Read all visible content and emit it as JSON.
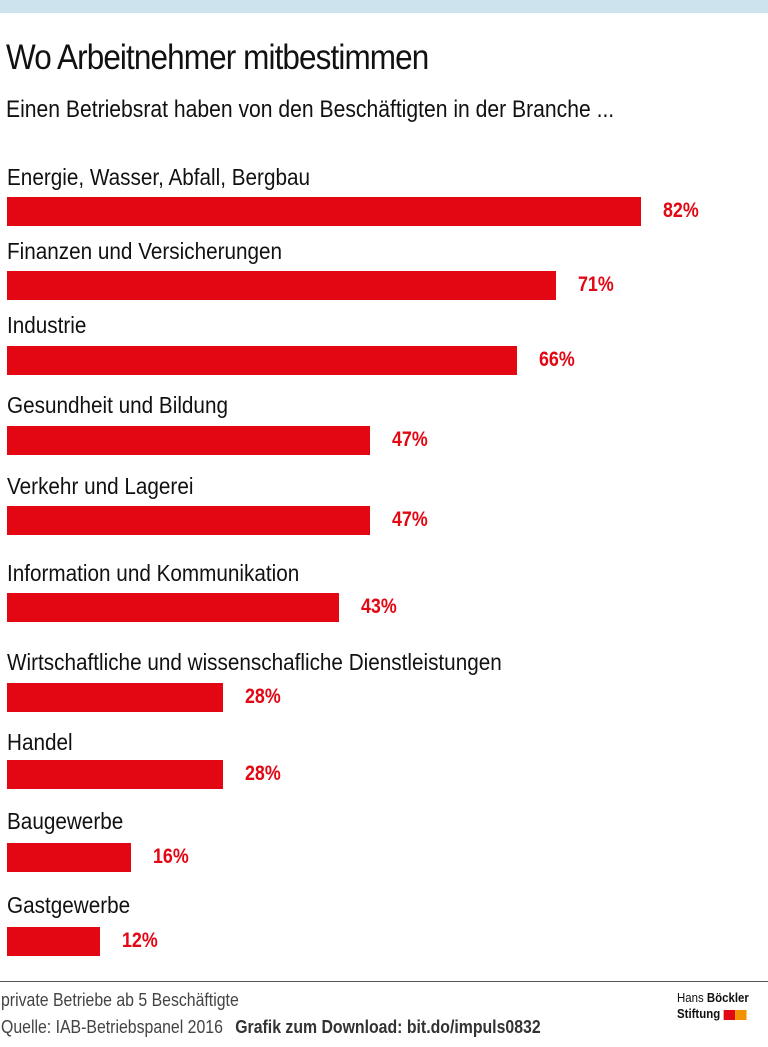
{
  "colors": {
    "bar": "#e30613",
    "value_label": "#e30613",
    "top_band": "#cde3ee",
    "logo_red": "#e30613",
    "logo_orange": "#f39200"
  },
  "chart_data": {
    "type": "bar",
    "orientation": "horizontal",
    "title": "Wo Arbeitnehmer mitbestimmen",
    "subtitle": "Einen Betriebsrat haben von den Beschäftigten in der Branche ...",
    "categories": [
      "Energie, Wasser, Abfall, Bergbau",
      "Finanzen und Versicherungen",
      "Industrie",
      "Gesundheit und Bildung",
      "Verkehr und Lagerei",
      "Information und Kommunikation",
      "Wirtschaftliche und wissenschafliche Dienstleistungen",
      "Handel",
      "Baugewerbe",
      "Gastgewerbe"
    ],
    "values": [
      82,
      71,
      66,
      47,
      47,
      43,
      28,
      28,
      16,
      12
    ],
    "value_labels": [
      "82%",
      "71%",
      "66%",
      "47%",
      "47%",
      "43%",
      "28%",
      "28%",
      "16%",
      "12%"
    ],
    "unit": "%",
    "xlim": [
      0,
      100
    ],
    "grid": false,
    "legend": "none"
  },
  "footer": {
    "note": "private Betriebe ab 5 Beschäftigte",
    "source": "Quelle: IAB-Betriebspanel 2016",
    "download": "Grafik zum Download: bit.do/impuls0832",
    "logo_line1_a": "Hans",
    "logo_line1_b": "Böckler",
    "logo_line2": "Stiftung"
  }
}
